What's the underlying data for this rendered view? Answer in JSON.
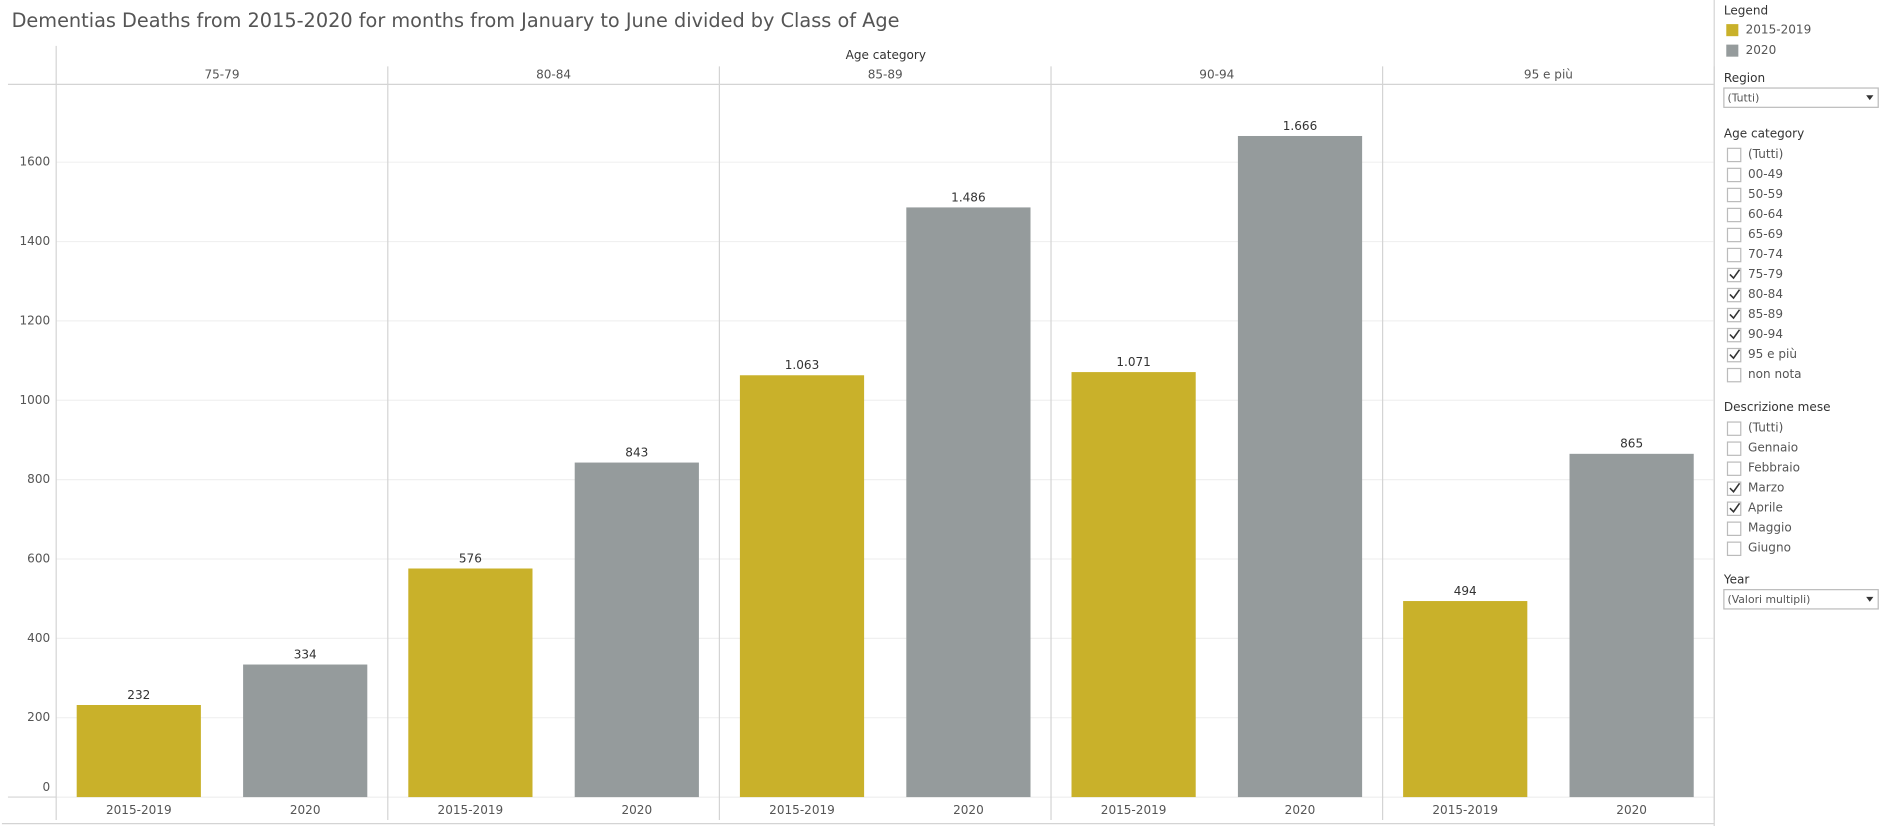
{
  "chart_data": {
    "type": "bar",
    "title": "Dementias Deaths from 2015-2020 for months from January to June divided by Class of Age",
    "column_header": "Age category",
    "categories": [
      "75-79",
      "80-84",
      "85-89",
      "90-94",
      "95 e più"
    ],
    "series": [
      {
        "name": "2015-2019",
        "color": "#c9b12a",
        "values": [
          232,
          576,
          1063,
          1071,
          494
        ],
        "value_labels": [
          "232",
          "576",
          "1.063",
          "1.071",
          "494"
        ]
      },
      {
        "name": "2020",
        "color": "#959b9c",
        "values": [
          334,
          843,
          1486,
          1666,
          865
        ],
        "value_labels": [
          "334",
          "843",
          "1.486",
          "1.666",
          "865"
        ]
      }
    ],
    "ylim": [
      0,
      1796
    ],
    "yticks": [
      0,
      200,
      400,
      600,
      800,
      1000,
      1200,
      1400,
      1600
    ],
    "grid": true,
    "legend": {
      "title": "Legend"
    }
  },
  "filters": {
    "region": {
      "title": "Region",
      "value": "(Tutti)"
    },
    "age_category": {
      "title": "Age category",
      "items": [
        {
          "label": "(Tutti)",
          "checked": false
        },
        {
          "label": "00-49",
          "checked": false
        },
        {
          "label": "50-59",
          "checked": false
        },
        {
          "label": "60-64",
          "checked": false
        },
        {
          "label": "65-69",
          "checked": false
        },
        {
          "label": "70-74",
          "checked": false
        },
        {
          "label": "75-79",
          "checked": true
        },
        {
          "label": "80-84",
          "checked": true
        },
        {
          "label": "85-89",
          "checked": true
        },
        {
          "label": "90-94",
          "checked": true
        },
        {
          "label": "95 e più",
          "checked": true
        },
        {
          "label": "non nota",
          "checked": false
        }
      ]
    },
    "month": {
      "title": "Descrizione mese",
      "items": [
        {
          "label": "(Tutti)",
          "checked": false
        },
        {
          "label": "Gennaio",
          "checked": false
        },
        {
          "label": "Febbraio",
          "checked": false
        },
        {
          "label": "Marzo",
          "checked": true
        },
        {
          "label": "Aprile",
          "checked": true
        },
        {
          "label": "Maggio",
          "checked": false
        },
        {
          "label": "Giugno",
          "checked": false
        }
      ]
    },
    "year": {
      "title": "Year",
      "value": "(Valori multipli)"
    }
  }
}
